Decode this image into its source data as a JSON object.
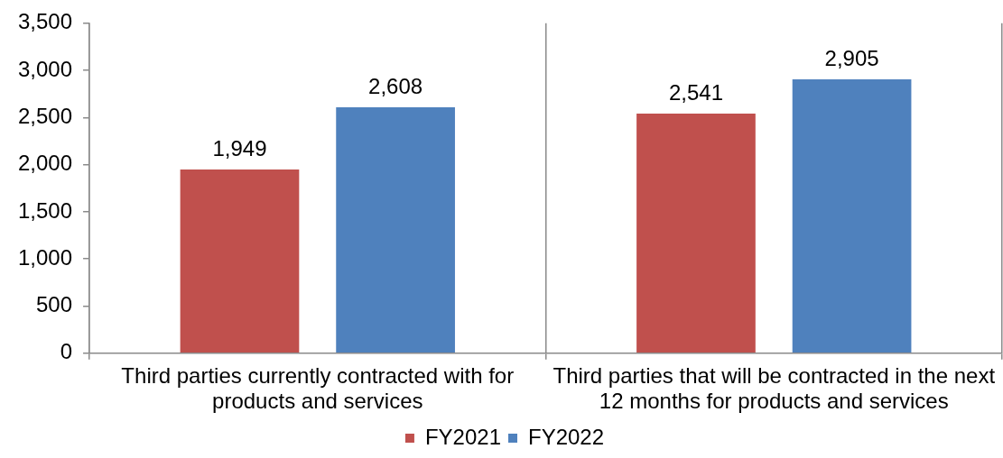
{
  "chart_data": {
    "type": "bar",
    "categories": [
      "Third parties currently contracted with for products and services",
      "Third parties that will be contracted in the next 12 months for products and services"
    ],
    "series": [
      {
        "name": "FY2021",
        "color": "#c0504d",
        "values": [
          1949,
          2541
        ],
        "value_labels": [
          "1,949",
          "2,541"
        ]
      },
      {
        "name": "FY2022",
        "color": "#4f81bd",
        "values": [
          2608,
          2905
        ],
        "value_labels": [
          "2,608",
          "2,905"
        ]
      }
    ],
    "ylim": [
      0,
      3500
    ],
    "yticks": [
      0,
      500,
      {
        "value": 1000,
        "label": "1,000"
      },
      {
        "value": 1500,
        "label": "1,500"
      },
      {
        "value": 2000,
        "label": "2,000"
      },
      {
        "value": 2500,
        "label": "2,500"
      },
      {
        "value": 3000,
        "label": "3,000"
      },
      {
        "value": 3500,
        "label": "3,500"
      }
    ],
    "grid": "x",
    "legend": "bottom"
  }
}
